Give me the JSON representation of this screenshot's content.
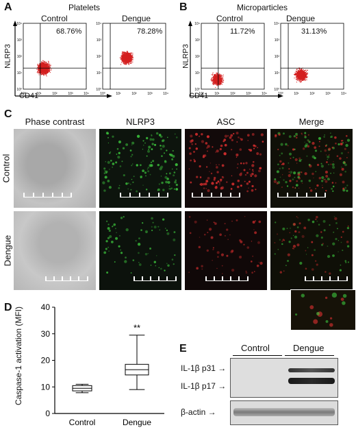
{
  "panels": {
    "A": {
      "letter": "A",
      "title": "Platelets",
      "left_label": "Control",
      "right_label": "Dengue",
      "left_pct": "68.76%",
      "right_pct": "78.28%",
      "xlabel": "CD41",
      "ylabel": "NLRP3",
      "ticks": [
        "10⁰",
        "10¹",
        "10²",
        "10³",
        "10⁴"
      ]
    },
    "B": {
      "letter": "B",
      "title": "Microparticles",
      "left_label": "Control",
      "right_label": "Dengue",
      "left_pct": "11.72%",
      "right_pct": "31.13%",
      "xlabel": "CD41",
      "ylabel": "NLRP3"
    },
    "C": {
      "letter": "C",
      "columns": [
        "Phase contrast",
        "NLRP3",
        "ASC",
        "Merge"
      ],
      "rows": [
        "Control",
        "Dengue"
      ]
    },
    "D": {
      "letter": "D",
      "ylabel": "Caspase-1 activation (MFI)",
      "significance": "**"
    },
    "E": {
      "letter": "E",
      "group_control": "Control",
      "group_dengue": "Dengue",
      "band_p31": "IL-1β p31",
      "band_p17": "IL-1β p17",
      "band_actin": "β-actin"
    }
  },
  "chart_data": {
    "type": "boxplot",
    "categories": [
      "Control",
      "Dengue"
    ],
    "ylim": [
      0,
      40
    ],
    "yticks": [
      0,
      10,
      20,
      30,
      40
    ],
    "ylabel": "Caspase-1 activation (MFI)",
    "boxes": [
      {
        "category": "Control",
        "min": 7.8,
        "q1": 8.5,
        "median": 9.5,
        "q3": 10.5,
        "max": 11
      },
      {
        "category": "Dengue",
        "min": 9,
        "q1": 14.5,
        "median": 16.5,
        "q3": 18.5,
        "max": 29.5
      }
    ],
    "annotations": [
      "**"
    ]
  },
  "colors": {
    "dots": "#d42020",
    "green_channel": "#3ec83e",
    "red_channel": "#e03030",
    "phase_bg": "#b8b8b8",
    "blot_band": "#1a1a1a"
  }
}
